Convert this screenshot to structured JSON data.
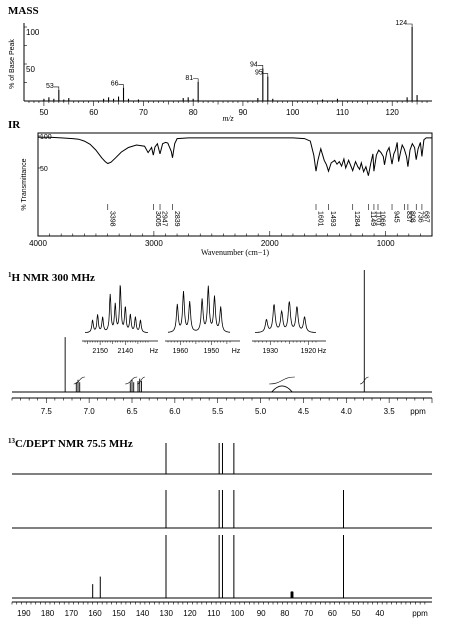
{
  "chart_data": [
    {
      "type": "bar",
      "title": "MASS",
      "ylabel": "% of Base Peak",
      "xlabel": "m/z",
      "xlim": [
        46,
        128
      ],
      "ylim": [
        0,
        100
      ],
      "yticks": [
        50,
        100
      ],
      "xticks": [
        50,
        60,
        70,
        80,
        90,
        100,
        110,
        120
      ],
      "peaks": [
        {
          "x": 50,
          "y": 3
        },
        {
          "x": 51,
          "y": 5
        },
        {
          "x": 52,
          "y": 3
        },
        {
          "x": 53,
          "y": 15,
          "label": "53"
        },
        {
          "x": 54,
          "y": 2
        },
        {
          "x": 55,
          "y": 4
        },
        {
          "x": 62,
          "y": 3
        },
        {
          "x": 63,
          "y": 5
        },
        {
          "x": 64,
          "y": 3
        },
        {
          "x": 65,
          "y": 6
        },
        {
          "x": 66,
          "y": 18,
          "label": "66"
        },
        {
          "x": 67,
          "y": 3
        },
        {
          "x": 69,
          "y": 2
        },
        {
          "x": 78,
          "y": 4
        },
        {
          "x": 79,
          "y": 5
        },
        {
          "x": 80,
          "y": 3
        },
        {
          "x": 81,
          "y": 26,
          "label": "81"
        },
        {
          "x": 93,
          "y": 4
        },
        {
          "x": 94,
          "y": 44,
          "label": "94"
        },
        {
          "x": 95,
          "y": 33,
          "label": "95"
        },
        {
          "x": 96,
          "y": 3
        },
        {
          "x": 106,
          "y": 2
        },
        {
          "x": 109,
          "y": 3
        },
        {
          "x": 123,
          "y": 5
        },
        {
          "x": 124,
          "y": 100,
          "label": "124"
        },
        {
          "x": 125,
          "y": 8
        }
      ]
    },
    {
      "type": "line",
      "title": "IR",
      "ylabel": "% Transmittance",
      "xlabel": "Wavenumber (cm−1)",
      "xlim": [
        4000,
        600
      ],
      "ylim": [
        0,
        100
      ],
      "yticks": [
        50,
        100
      ],
      "xticks": [
        4000,
        3000,
        2000,
        1000
      ],
      "x": [
        4000,
        3900,
        3800,
        3700,
        3650,
        3600,
        3550,
        3500,
        3450,
        3420,
        3398,
        3370,
        3330,
        3280,
        3220,
        3150,
        3080,
        3050,
        3020,
        3005,
        2990,
        2970,
        2947,
        2925,
        2900,
        2880,
        2850,
        2839,
        2820,
        2800,
        2700,
        2500,
        2300,
        2100,
        1900,
        1800,
        1700,
        1650,
        1620,
        1601,
        1585,
        1560,
        1530,
        1510,
        1493,
        1470,
        1440,
        1420,
        1400,
        1380,
        1360,
        1345,
        1320,
        1284,
        1260,
        1240,
        1225,
        1210,
        1190,
        1170,
        1149,
        1130,
        1110,
        1101,
        1080,
        1060,
        1040,
        1020,
        1010,
        990,
        970,
        945,
        930,
        915,
        900,
        888,
        870,
        857,
        840,
        820,
        808,
        790,
        770,
        750,
        736,
        720,
        700,
        687,
        670,
        650,
        630,
        600
      ],
      "y": [
        98,
        98,
        97,
        96,
        95,
        92,
        87,
        78,
        66,
        60,
        57,
        59,
        66,
        75,
        82,
        86,
        84,
        74,
        82,
        70,
        83,
        88,
        72,
        88,
        90,
        89,
        76,
        66,
        88,
        96,
        97,
        97,
        97,
        97,
        97,
        97,
        96,
        92,
        70,
        45,
        62,
        80,
        62,
        55,
        45,
        58,
        62,
        56,
        60,
        53,
        64,
        50,
        62,
        46,
        60,
        52,
        48,
        58,
        44,
        52,
        38,
        56,
        72,
        45,
        70,
        78,
        74,
        68,
        55,
        75,
        82,
        56,
        72,
        78,
        90,
        60,
        76,
        86,
        80,
        68,
        52,
        78,
        88,
        82,
        63,
        80,
        90,
        68,
        94,
        97,
        97,
        97
      ],
      "labels": [
        {
          "x": 3398,
          "text": "3398"
        },
        {
          "x": 3005,
          "text": "3005"
        },
        {
          "x": 2947,
          "text": "2947"
        },
        {
          "x": 2839,
          "text": "2839"
        },
        {
          "x": 1601,
          "text": "1601"
        },
        {
          "x": 1493,
          "text": "1493"
        },
        {
          "x": 1284,
          "text": "1284"
        },
        {
          "x": 1149,
          "text": "1149"
        },
        {
          "x": 1101,
          "text": "1101"
        },
        {
          "x": 1066,
          "text": "1066"
        },
        {
          "x": 945,
          "text": "945"
        },
        {
          "x": 837,
          "text": "837"
        },
        {
          "x": 808,
          "text": "808"
        },
        {
          "x": 736,
          "text": "736"
        },
        {
          "x": 687,
          "text": "687"
        }
      ]
    },
    {
      "type": "line",
      "title": "H NMR 300 MHz",
      "title_superscript": "1",
      "xlabel": "ppm",
      "xlim": [
        7.9,
        3.0
      ],
      "xticks": [
        7.5,
        7.0,
        6.5,
        6.0,
        5.5,
        5.0,
        4.5,
        4.0,
        3.5
      ],
      "main_peaks": [
        {
          "x": 7.28,
          "h": 0.45
        },
        {
          "x": 7.15,
          "h": 0.08
        },
        {
          "x": 7.13,
          "h": 0.1
        },
        {
          "x": 7.11,
          "h": 0.08
        },
        {
          "x": 6.52,
          "h": 0.08
        },
        {
          "x": 6.5,
          "h": 0.1
        },
        {
          "x": 6.48,
          "h": 0.08
        },
        {
          "x": 6.43,
          "h": 0.09
        },
        {
          "x": 6.41,
          "h": 0.11
        },
        {
          "x": 6.39,
          "h": 0.09
        },
        {
          "x": 3.79,
          "h": 1.0
        }
      ],
      "broad": [
        {
          "x": 4.75,
          "w": 0.12,
          "h": 0.05
        }
      ],
      "integrals": [
        {
          "x1": 7.18,
          "x2": 7.05
        },
        {
          "x1": 6.58,
          "x2": 6.44
        },
        {
          "x1": 6.44,
          "x2": 6.35
        },
        {
          "x1": 4.9,
          "x2": 4.6
        },
        {
          "x1": 3.84,
          "x2": 3.74
        }
      ],
      "insets": [
        {
          "ticks": [
            "2150",
            "2140"
          ],
          "unit": "Hz",
          "lines": [
            2153,
            2151,
            2149,
            2146,
            2144,
            2142,
            2140,
            2138,
            2136,
            2134
          ],
          "heights": [
            0.25,
            0.35,
            0.3,
            0.75,
            0.55,
            0.95,
            0.5,
            0.35,
            0.3,
            0.25
          ]
        },
        {
          "ticks": [
            "1960",
            "1950"
          ],
          "unit": "Hz",
          "lines": [
            1961,
            1959,
            1957,
            1953,
            1951,
            1949,
            1947
          ],
          "heights": [
            0.55,
            0.8,
            0.6,
            0.65,
            0.9,
            0.7,
            0.5
          ]
        },
        {
          "ticks": [
            "1930",
            "1920"
          ],
          "unit": "Hz",
          "lines": [
            1931,
            1929,
            1927,
            1925,
            1923,
            1921
          ],
          "heights": [
            0.25,
            0.55,
            0.4,
            0.6,
            0.5,
            0.3
          ]
        }
      ]
    },
    {
      "type": "bar",
      "title": "C/DEPT NMR 75.5 MHz",
      "title_superscript": "13",
      "xlabel": "ppm",
      "xlim": [
        195,
        18
      ],
      "xticks": [
        190,
        180,
        170,
        160,
        150,
        140,
        130,
        120,
        110,
        100,
        90,
        80,
        70,
        60,
        50,
        40
      ],
      "traces": [
        {
          "peaks": [
            {
              "x": 130.1,
              "h": 1.0
            },
            {
              "x": 107.7,
              "h": 1.0
            },
            {
              "x": 106.3,
              "h": 1.0
            },
            {
              "x": 101.5,
              "h": 1.0
            }
          ]
        },
        {
          "peaks": [
            {
              "x": 130.1,
              "h": 1.0
            },
            {
              "x": 107.7,
              "h": 1.0
            },
            {
              "x": 106.3,
              "h": 1.0
            },
            {
              "x": 101.5,
              "h": 1.0
            },
            {
              "x": 55.3,
              "h": 1.0
            }
          ]
        },
        {
          "peaks": [
            {
              "x": 161.0,
              "h": 0.22
            },
            {
              "x": 157.8,
              "h": 0.34
            },
            {
              "x": 130.1,
              "h": 1.0
            },
            {
              "x": 107.7,
              "h": 1.0
            },
            {
              "x": 106.3,
              "h": 1.0
            },
            {
              "x": 101.5,
              "h": 1.0
            },
            {
              "x": 77.4,
              "h": 0.1
            },
            {
              "x": 77.0,
              "h": 0.11
            },
            {
              "x": 76.6,
              "h": 0.1
            },
            {
              "x": 55.3,
              "h": 1.0
            }
          ]
        }
      ]
    }
  ]
}
